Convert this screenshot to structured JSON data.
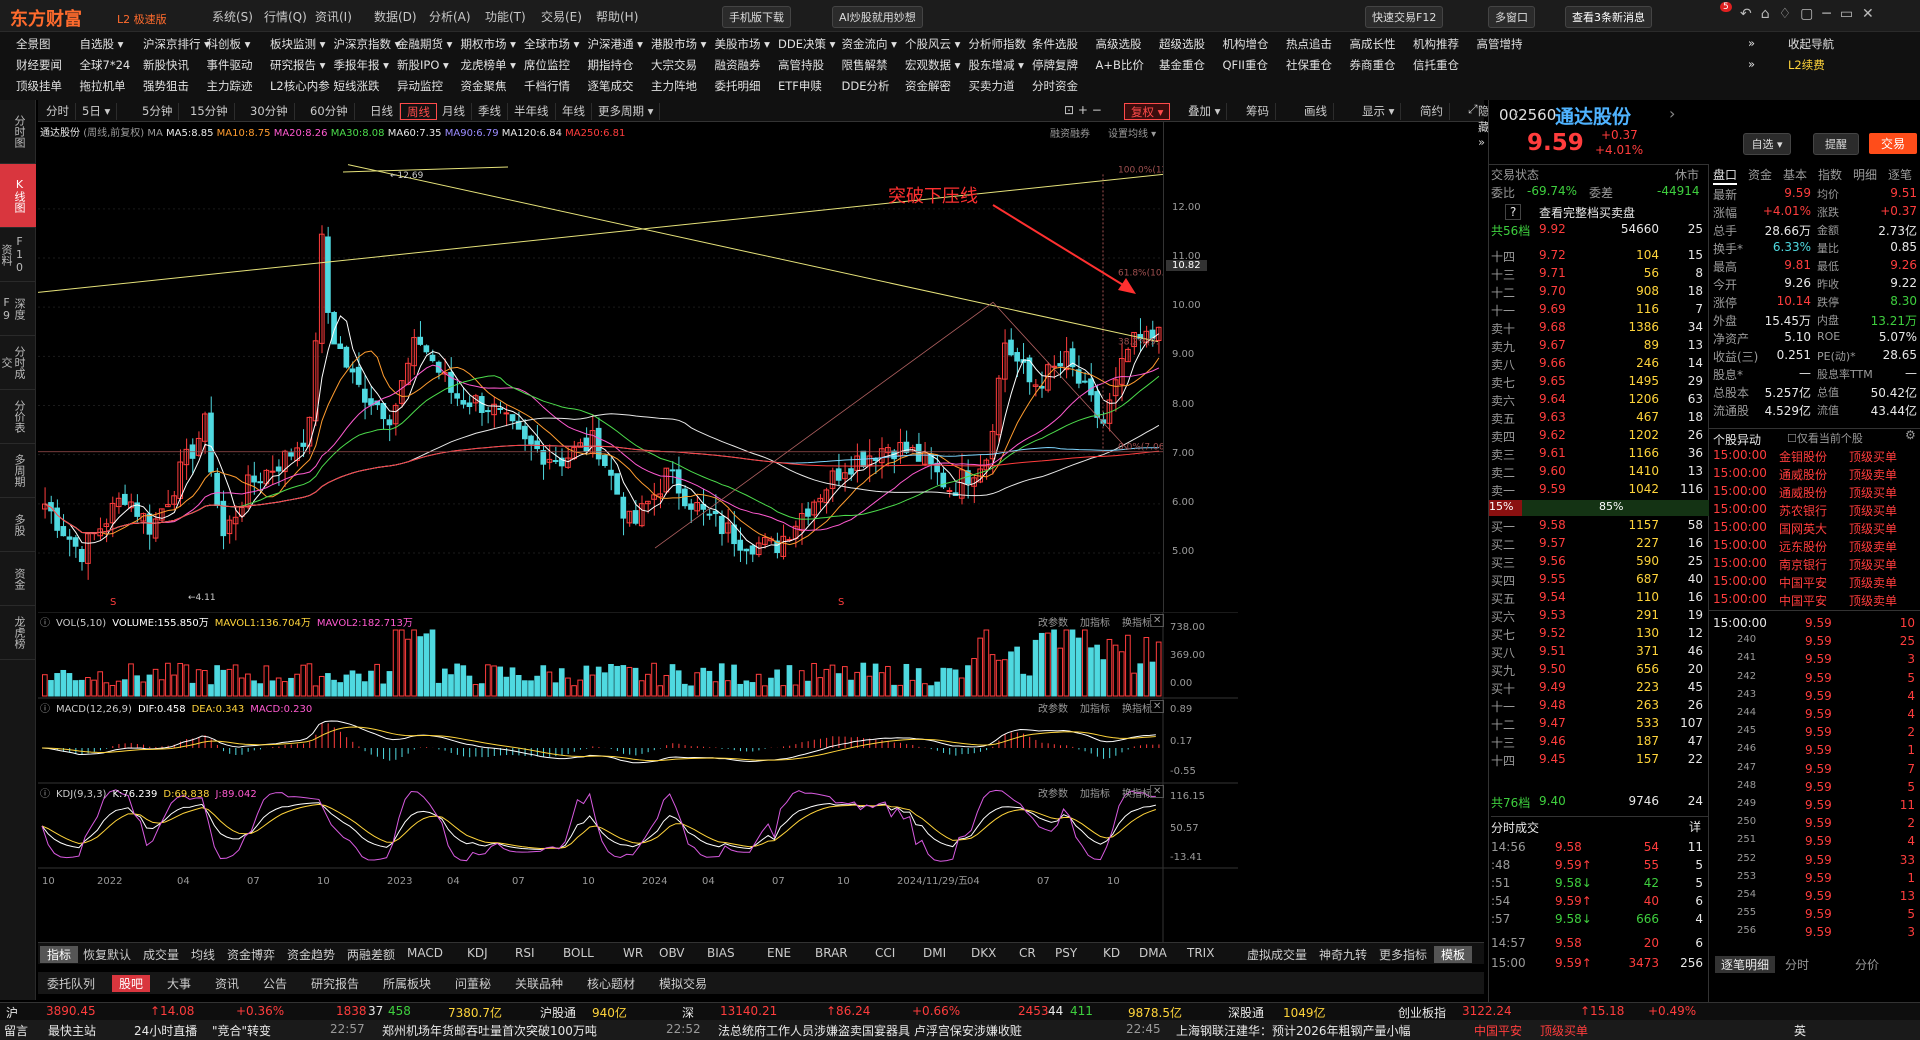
{
  "app": {
    "logo": "东方财富",
    "edition": "L2 极速版",
    "menus": [
      "系统(S)",
      "行情(Q)",
      "资讯(I)",
      "数据(D)",
      "分析(A)",
      "功能(T)",
      "交易(E)",
      "帮助(H)"
    ],
    "mobile_btn": "手机版下载",
    "ai_btn": "AI炒股就用妙想",
    "fast_trade": "快速交易F12",
    "multi_window": "多窗口",
    "news_alert": "查看3条新消息",
    "news_count": "5"
  },
  "nav_rows": [
    [
      "全景图",
      "自选股 ▾",
      "沪深京排行 ▾",
      "科创板 ▾",
      "板块监测 ▾",
      "沪深京指数 ▾",
      "金融期货 ▾",
      "期权市场 ▾",
      "全球市场 ▾",
      "沪深港通 ▾",
      "港股市场 ▾",
      "美股市场 ▾",
      "DDE决策 ▾",
      "资金流向 ▾",
      "个股风云 ▾",
      "分析师指数",
      "条件选股",
      "高级选股",
      "超级选股",
      "机构增仓",
      "热点追击",
      "高成长性",
      "机构推荐",
      "高管增持",
      "»",
      "收起导航"
    ],
    [
      "财经要闻",
      "全球7*24",
      "新股快讯",
      "事件驱动",
      "研究报告 ▾",
      "季报年报 ▾",
      "新股IPO ▾",
      "龙虎榜单 ▾",
      "席位监控",
      "期指持仓",
      "大宗交易",
      "融资融券",
      "高管持股",
      "限售解禁",
      "宏观数据 ▾",
      "股东增减 ▾",
      "停牌复牌",
      "A+B比价",
      "基金重仓",
      "QFII重仓",
      "社保重仓",
      "券商重仓",
      "信托重仓",
      "»",
      "L2续费"
    ],
    [
      "顶级挂单",
      "拖拉机单",
      "强势狙击",
      "主力踪迹",
      "L2核心内参",
      "短线涨跌",
      "异动监控",
      "资金聚焦",
      "千档行情",
      "逐笔成交",
      "主力阵地",
      "委托明细",
      "ETF申赎",
      "DDE分析",
      "资金解密",
      "买卖力道",
      "分时资金"
    ]
  ],
  "left_tabs": [
    "分时图",
    "K线图",
    "F10资料",
    "深度F9",
    "分时成交",
    "分价表",
    "多周期",
    "多股",
    "资金",
    "龙虎榜"
  ],
  "periods": [
    "分时",
    "5日 ▾",
    "5分钟",
    "15分钟",
    "30分钟",
    "60分钟",
    "日线",
    "周线",
    "月线",
    "季线",
    "半年线",
    "年线",
    "更多周期 ▾"
  ],
  "active_period": "周线",
  "chart_tools": [
    "复权 ▾",
    "叠加 ▾",
    "筹码",
    "画线",
    "显示 ▾",
    "简约",
    "隐藏 »"
  ],
  "ma_bar": {
    "name": "通达股份",
    "mode": "(周线,前复权)",
    "ma": "MA",
    "ma5": "MA5:8.85",
    "ma10": "MA10:8.75",
    "ma20": "MA20:8.26",
    "ma30": "MA30:8.08",
    "ma60": "MA60:7.35",
    "ma90": "MA90:6.79",
    "ma120": "MA120:6.84",
    "ma250": "MA250:6.81",
    "rz": "融资融券",
    "set": "设置均线 ▾"
  },
  "annotation": "突破下压线",
  "chart_labels": {
    "high": "12.69",
    "low": "4.11",
    "fib100": "100.0%(12",
    "fib61": "61.8%(10.",
    "fib38": "38.2%(9.",
    "fib0": "0.0%(7.06",
    "price_flag": "10.82",
    "s1": "S",
    "s2": "S"
  },
  "price_axis": [
    "12.00",
    "11.00",
    "10.00",
    "9.00",
    "8.00",
    "7.00",
    "6.00",
    "5.00"
  ],
  "vol_bar": {
    "t": "VOL(5,10)",
    "v": "VOLUME:155.850万",
    "m1": "MAVOL1:136.704万",
    "m2": "MAVOL2:182.713万",
    "axis": [
      "738.00",
      "369.00",
      "0.00"
    ]
  },
  "macd_bar": {
    "t": "MACD(12,26,9)",
    "dif": "DIF:0.458",
    "dea": "DEA:0.343",
    "macd": "MACD:0.230",
    "axis": [
      "0.89",
      "0.17",
      "-0.55"
    ]
  },
  "kdj_bar": {
    "t": "KDJ(9,3,3)",
    "k": "K:76.239",
    "d": "D:69.838",
    "j": "J:89.042",
    "axis": [
      "116.15",
      "50.57",
      "-13.41"
    ]
  },
  "panel_tools": [
    "改参数",
    "加指标",
    "换指标"
  ],
  "x_axis": [
    "10",
    "2022",
    "04",
    "07",
    "10",
    "2023",
    "04",
    "07",
    "10",
    "2024",
    "04",
    "07",
    "10",
    "2024/11/29/五",
    "04",
    "07",
    "10"
  ],
  "indicators": [
    "指标",
    "恢复默认",
    "成交量",
    "均线",
    "资金博弈",
    "资金趋势",
    "两融差额",
    "MACD",
    "KDJ",
    "RSI",
    "BOLL",
    "WR",
    "OBV",
    "BIAS",
    "ENE",
    "BRAR",
    "CCI",
    "DMI",
    "DKX",
    "CR",
    "PSY",
    "KD",
    "DMA",
    "TRIX",
    "虚拟成交量",
    "神奇九转",
    "更多指标",
    "模板"
  ],
  "bottom_tabs": [
    "委托队列",
    "股吧",
    "大事",
    "资讯",
    "公告",
    "研究报告",
    "所属板块",
    "问董秘",
    "关联品种",
    "核心题材",
    "模拟交易"
  ],
  "quote": {
    "code": "002560",
    "name": "通达股份",
    "price": "9.59",
    "chg": "+0.37",
    "pct": "+4.01%",
    "zx": "自选 ▾",
    "tx": "提醒",
    "jy": "交易",
    "status_label": "交易状态",
    "status": "休市",
    "wb_label": "委比",
    "wb": "-69.74%",
    "wc_label": "委差",
    "wc": "-44914",
    "detail": "查看完整档买卖盘",
    "sell_total": [
      "共56档",
      "9.92",
      "54660",
      "25"
    ],
    "buy_total": [
      "共76档",
      "9.40",
      "9746",
      "24"
    ],
    "ratio_left": "15%",
    "ratio_right": "85%"
  },
  "sells": [
    [
      "十四",
      "9.72",
      "104",
      "15"
    ],
    [
      "十三",
      "9.71",
      "56",
      "8"
    ],
    [
      "十二",
      "9.70",
      "908",
      "18"
    ],
    [
      "十一",
      "9.69",
      "116",
      "7"
    ],
    [
      "卖十",
      "9.68",
      "1386",
      "34"
    ],
    [
      "卖九",
      "9.67",
      "89",
      "13"
    ],
    [
      "卖八",
      "9.66",
      "246",
      "14"
    ],
    [
      "卖七",
      "9.65",
      "1495",
      "29"
    ],
    [
      "卖六",
      "9.64",
      "1206",
      "63"
    ],
    [
      "卖五",
      "9.63",
      "467",
      "18"
    ],
    [
      "卖四",
      "9.62",
      "1202",
      "26"
    ],
    [
      "卖三",
      "9.61",
      "1166",
      "36"
    ],
    [
      "卖二",
      "9.60",
      "1410",
      "13"
    ],
    [
      "卖一",
      "9.59",
      "1042",
      "116"
    ]
  ],
  "buys": [
    [
      "买一",
      "9.58",
      "1157",
      "58"
    ],
    [
      "买二",
      "9.57",
      "227",
      "16"
    ],
    [
      "买三",
      "9.56",
      "590",
      "25"
    ],
    [
      "买四",
      "9.55",
      "687",
      "40"
    ],
    [
      "买五",
      "9.54",
      "110",
      "16"
    ],
    [
      "买六",
      "9.53",
      "291",
      "19"
    ],
    [
      "买七",
      "9.52",
      "130",
      "12"
    ],
    [
      "买八",
      "9.51",
      "371",
      "46"
    ],
    [
      "买九",
      "9.50",
      "656",
      "20"
    ],
    [
      "买十",
      "9.49",
      "223",
      "45"
    ],
    [
      "十一",
      "9.48",
      "263",
      "26"
    ],
    [
      "十二",
      "9.47",
      "533",
      "107"
    ],
    [
      "十三",
      "9.46",
      "187",
      "47"
    ],
    [
      "十四",
      "9.45",
      "157",
      "22"
    ]
  ],
  "rtabs": [
    "盘口",
    "资金",
    "基本",
    "指数",
    "明细",
    "逐笔"
  ],
  "stats": [
    [
      "最新",
      "9.59",
      "均价",
      "9.51"
    ],
    [
      "涨幅",
      "+4.01%",
      "涨跌",
      "+0.37"
    ],
    [
      "总手",
      "28.66万",
      "金额",
      "2.73亿"
    ],
    [
      "换手*",
      "6.33%",
      "量比",
      "0.85"
    ],
    [
      "最高",
      "9.81",
      "最低",
      "9.26"
    ],
    [
      "今开",
      "9.26",
      "昨收",
      "9.22"
    ],
    [
      "涨停",
      "10.14",
      "跌停",
      "8.30"
    ],
    [
      "外盘",
      "15.45万",
      "内盘",
      "13.21万"
    ],
    [
      "净资产",
      "5.10",
      "ROE",
      "5.07%"
    ],
    [
      "收益(三)",
      "0.251",
      "PE(动)*",
      "28.65"
    ],
    [
      "股息*",
      "—",
      "股息率TTM",
      "—"
    ],
    [
      "总股本",
      "5.257亿",
      "总值",
      "50.42亿"
    ],
    [
      "流通股",
      "4.529亿",
      "流值",
      "43.44亿"
    ]
  ],
  "yd_title": "个股异动",
  "yd_check": "仅看当前个股",
  "yd": [
    [
      "15:00:00",
      "金钼股份",
      "顶级买单"
    ],
    [
      "15:00:00",
      "通威股份",
      "顶级卖单"
    ],
    [
      "15:00:00",
      "通威股份",
      "顶级买单"
    ],
    [
      "15:00:00",
      "苏农银行",
      "顶级买单"
    ],
    [
      "15:00:00",
      "国网英大",
      "顶级买单"
    ],
    [
      "15:00:00",
      "远东股份",
      "顶级卖单"
    ],
    [
      "15:00:00",
      "南京银行",
      "顶级买单"
    ],
    [
      "15:00:00",
      "中国平安",
      "顶级卖单"
    ],
    [
      "15:00:00",
      "中国平安",
      "顶级卖单"
    ]
  ],
  "ticks_title": "分时成交",
  "ticks_detail": "详",
  "ticks": [
    [
      "14:56",
      "9.58",
      "54",
      "11"
    ],
    [
      ":48",
      "9.59↑",
      "55",
      "5"
    ],
    [
      ":51",
      "9.58↓",
      "42",
      "5"
    ],
    [
      ":54",
      "9.59↑",
      "40",
      "6"
    ],
    [
      ":57",
      "9.58↓",
      "666",
      "4"
    ],
    [
      "14:57",
      "9.58",
      "20",
      "6"
    ],
    [
      "15:00",
      "9.59↑",
      "3473",
      "256"
    ]
  ],
  "zb": [
    [
      "15:00:00",
      "9.59",
      "10"
    ],
    [
      "240",
      "9.59",
      "25"
    ],
    [
      "241",
      "9.59",
      "3"
    ],
    [
      "242",
      "9.59",
      "5"
    ],
    [
      "243",
      "9.59",
      "4"
    ],
    [
      "244",
      "9.59",
      "4"
    ],
    [
      "245",
      "9.59",
      "2"
    ],
    [
      "246",
      "9.59",
      "1"
    ],
    [
      "247",
      "9.59",
      "7"
    ],
    [
      "248",
      "9.59",
      "5"
    ],
    [
      "249",
      "9.59",
      "11"
    ],
    [
      "250",
      "9.59",
      "2"
    ],
    [
      "251",
      "9.59",
      "4"
    ],
    [
      "252",
      "9.59",
      "33"
    ],
    [
      "253",
      "9.59",
      "1"
    ],
    [
      "254",
      "9.59",
      "13"
    ],
    [
      "255",
      "9.59",
      "5"
    ],
    [
      "256",
      "9.59",
      "3"
    ]
  ],
  "right_bottom_tabs": [
    "逐笔明细",
    "分时",
    "分价"
  ],
  "status": {
    "hu": "沪",
    "hu_v": "3890.45",
    "hu_c": "↑14.08",
    "hu_p": "+0.36%",
    "hu_a": "1838",
    "hu_b": "37",
    "hu_d": "458",
    "hu_amt": "7380.7亿",
    "hgt": "沪股通",
    "hgt_v": "940亿",
    "shen": "深",
    "sh_v": "13140.21",
    "sh_c": "↑86.24",
    "sh_p": "+0.66%",
    "sh_a": "2453",
    "sh_b": "44",
    "sh_d": "411",
    "sh_amt": "9878.5亿",
    "sgt": "深股通",
    "sgt_v": "1049亿",
    "cyb": "创业板指",
    "cyb_v": "3122.24",
    "cyb_c": "↑15.18",
    "cyb_p": "+0.49%"
  },
  "news": {
    "msg": "留言",
    "cr": "最快主站",
    "live": "24小时直播",
    "n1": "\"竞合\"转变",
    "t2": "22:57",
    "n2": "郑州机场年货邮吞吐量首次突破100万吨",
    "t3": "22:52",
    "n3": "法总统府工作人员涉嫌盗卖国宴器具 卢浮宫保安涉嫌收赃",
    "t4": "22:45",
    "n4": "上海钢联汪建华：预计2026年粗钢产量小幅",
    "tick": "中国平安",
    "tick_s": "顶级买单",
    "lang": "英"
  },
  "colors": {
    "up": "#ff3d3d",
    "down": "#4fd9e0",
    "trend": "#e6e27a",
    "accent": "#d9363e"
  }
}
